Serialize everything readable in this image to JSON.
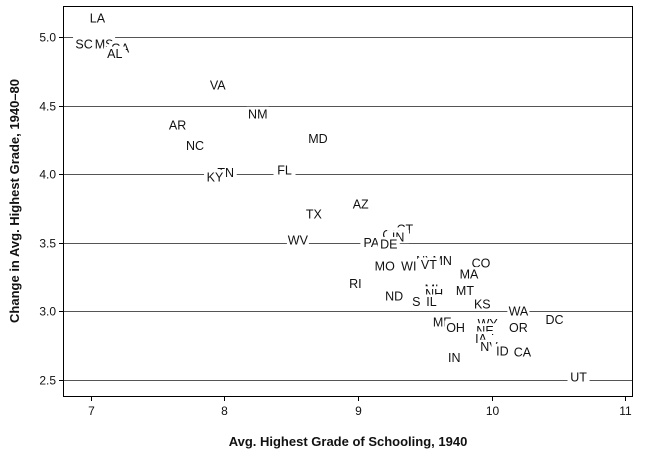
{
  "chart_data": {
    "type": "scatter",
    "marker": "text-label",
    "title": "",
    "xlabel": "Avg. Highest Grade of Schooling, 1940",
    "ylabel": "Change in Avg. Highest Grade, 1940–80",
    "xlim": [
      6.8,
      11.05
    ],
    "ylim": [
      2.38,
      5.22
    ],
    "xticks": [
      7,
      8,
      9,
      10,
      11
    ],
    "yticks": [
      2.5,
      3.0,
      3.5,
      4.0,
      4.5,
      5.0
    ],
    "grid": "horizontal",
    "points": [
      {
        "label": "LA",
        "x": 7.05,
        "y": 5.14
      },
      {
        "label": "SC",
        "x": 6.95,
        "y": 4.95
      },
      {
        "label": "MS",
        "x": 7.1,
        "y": 4.95
      },
      {
        "label": "GA",
        "x": 7.22,
        "y": 4.92
      },
      {
        "label": "AL",
        "x": 7.18,
        "y": 4.88
      },
      {
        "label": "VA",
        "x": 7.95,
        "y": 4.65
      },
      {
        "label": "NM",
        "x": 8.25,
        "y": 4.44
      },
      {
        "label": "AR",
        "x": 7.65,
        "y": 4.36
      },
      {
        "label": "MD",
        "x": 8.7,
        "y": 4.26
      },
      {
        "label": "NC",
        "x": 7.78,
        "y": 4.21
      },
      {
        "label": "FL",
        "x": 8.45,
        "y": 4.03
      },
      {
        "label": "TN",
        "x": 8.01,
        "y": 4.01
      },
      {
        "label": "KY",
        "x": 7.93,
        "y": 3.98
      },
      {
        "label": "AZ",
        "x": 9.02,
        "y": 3.78
      },
      {
        "label": "TX",
        "x": 8.67,
        "y": 3.71
      },
      {
        "label": "CT",
        "x": 9.35,
        "y": 3.6
      },
      {
        "label": "OK",
        "x": 9.25,
        "y": 3.56
      },
      {
        "label": "IN",
        "x": 9.3,
        "y": 3.54
      },
      {
        "label": "WV",
        "x": 8.55,
        "y": 3.52
      },
      {
        "label": "PA",
        "x": 9.1,
        "y": 3.5
      },
      {
        "label": "DE",
        "x": 9.23,
        "y": 3.49
      },
      {
        "label": "NY",
        "x": 9.5,
        "y": 3.37
      },
      {
        "label": "MN",
        "x": 9.63,
        "y": 3.37
      },
      {
        "label": "CO",
        "x": 9.92,
        "y": 3.35
      },
      {
        "label": "VT",
        "x": 9.53,
        "y": 3.34
      },
      {
        "label": "MO",
        "x": 9.2,
        "y": 3.33
      },
      {
        "label": "WI",
        "x": 9.38,
        "y": 3.33
      },
      {
        "label": "MA",
        "x": 9.83,
        "y": 3.27
      },
      {
        "label": "RI",
        "x": 8.98,
        "y": 3.2
      },
      {
        "label": "MI",
        "x": 9.55,
        "y": 3.16
      },
      {
        "label": "MT",
        "x": 9.8,
        "y": 3.15
      },
      {
        "label": "NH",
        "x": 9.57,
        "y": 3.13
      },
      {
        "label": "ND",
        "x": 9.27,
        "y": 3.11
      },
      {
        "label": "SD",
        "x": 9.47,
        "y": 3.07
      },
      {
        "label": "IL",
        "x": 9.55,
        "y": 3.07
      },
      {
        "label": "KS",
        "x": 9.93,
        "y": 3.05
      },
      {
        "label": "WA",
        "x": 10.2,
        "y": 3.0
      },
      {
        "label": "DC",
        "x": 10.47,
        "y": 2.94
      },
      {
        "label": "ME",
        "x": 9.63,
        "y": 2.92
      },
      {
        "label": "WY",
        "x": 9.97,
        "y": 2.91
      },
      {
        "label": "OH",
        "x": 9.73,
        "y": 2.88
      },
      {
        "label": "OR",
        "x": 10.2,
        "y": 2.88
      },
      {
        "label": "NE",
        "x": 9.95,
        "y": 2.86
      },
      {
        "label": "IA",
        "x": 9.92,
        "y": 2.8
      },
      {
        "label": "NV",
        "x": 9.98,
        "y": 2.74
      },
      {
        "label": "ID",
        "x": 10.08,
        "y": 2.71
      },
      {
        "label": "CA",
        "x": 10.23,
        "y": 2.7
      },
      {
        "label": "IN",
        "x": 9.72,
        "y": 2.66
      },
      {
        "label": "UT",
        "x": 10.65,
        "y": 2.52
      }
    ]
  }
}
